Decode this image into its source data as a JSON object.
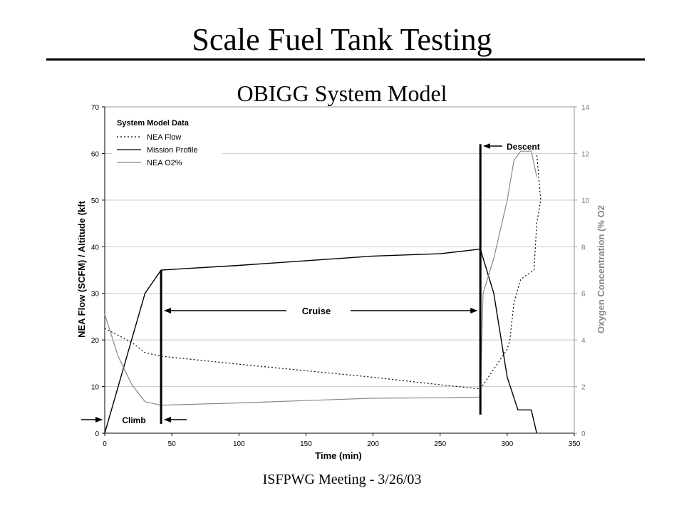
{
  "slide": {
    "title": "Scale Fuel Tank Testing",
    "subtitle": "OBIGG System Model",
    "footer": "ISFPWG Meeting - 3/26/03"
  },
  "chart_data": {
    "type": "line",
    "xlabel": "Time (min)",
    "ylabel": "NEA Flow (SCFM) / Altitude (kft",
    "y2label": "Oxygen Concentration (% O2",
    "xlim": [
      0,
      350
    ],
    "ylim": [
      0,
      70
    ],
    "y2lim": [
      0,
      14
    ],
    "xticks": [
      0,
      50,
      100,
      150,
      200,
      250,
      300,
      350
    ],
    "yticks": [
      0,
      10,
      20,
      30,
      40,
      50,
      60,
      70
    ],
    "y2ticks": [
      0,
      2,
      4,
      6,
      8,
      10,
      12,
      14
    ],
    "grid": "horizontal",
    "legend": {
      "title": "System Model Data",
      "placement": "top-left",
      "entries": [
        "NEA Flow",
        "Mission Profile",
        "NEA O2%"
      ]
    },
    "series": [
      {
        "name": "NEA Flow",
        "style": "dotted",
        "color": "#000000",
        "axis": "left",
        "points": [
          [
            0,
            22.5
          ],
          [
            10,
            21
          ],
          [
            20,
            19.5
          ],
          [
            30,
            17.3
          ],
          [
            42,
            16.5
          ],
          [
            100,
            14.8
          ],
          [
            150,
            13.4
          ],
          [
            200,
            12
          ],
          [
            250,
            10.4
          ],
          [
            280,
            9.5
          ],
          [
            300,
            18
          ],
          [
            302,
            20
          ],
          [
            305,
            28
          ],
          [
            310,
            33
          ],
          [
            320,
            35
          ],
          [
            322,
            45
          ],
          [
            325,
            50
          ],
          [
            322,
            60
          ]
        ]
      },
      {
        "name": "Mission Profile",
        "style": "solid",
        "color": "#000000",
        "axis": "left",
        "points": [
          [
            0,
            0
          ],
          [
            30,
            30
          ],
          [
            42,
            35
          ],
          [
            100,
            36
          ],
          [
            150,
            37
          ],
          [
            200,
            38
          ],
          [
            250,
            38.5
          ],
          [
            280,
            39.5
          ],
          [
            290,
            30
          ],
          [
            300,
            12
          ],
          [
            308,
            5
          ],
          [
            318,
            5
          ],
          [
            322,
            0
          ]
        ]
      },
      {
        "name": "NEA O2%",
        "style": "solid",
        "color": "#888888",
        "axis": "right",
        "points": [
          [
            0,
            5.1
          ],
          [
            10,
            3.3
          ],
          [
            20,
            2.1
          ],
          [
            30,
            1.35
          ],
          [
            42,
            1.2
          ],
          [
            100,
            1.3
          ],
          [
            150,
            1.4
          ],
          [
            200,
            1.5
          ],
          [
            250,
            1.52
          ],
          [
            280,
            1.55
          ],
          [
            282,
            6
          ],
          [
            290,
            7.5
          ],
          [
            300,
            10
          ],
          [
            305,
            11.7
          ],
          [
            310,
            12.1
          ],
          [
            318,
            12.1
          ],
          [
            322,
            11
          ]
        ]
      }
    ],
    "annotations": {
      "climb": "Climb",
      "cruise": "Cruise",
      "descent": "Descent"
    },
    "phase_lines_x": [
      42,
      280
    ]
  }
}
